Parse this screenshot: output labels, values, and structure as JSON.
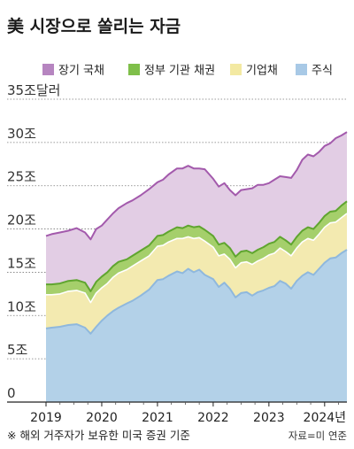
{
  "chart_data": {
    "type": "area",
    "title": "美 시장으로 쏠리는 자금",
    "unit_label": "35조달러",
    "y_ticks": [
      "35조달러",
      "30조",
      "25조",
      "20조",
      "15조",
      "10조",
      "5조",
      "0"
    ],
    "y_tick_values": [
      35,
      30,
      25,
      20,
      15,
      10,
      5,
      0
    ],
    "ylim": [
      0,
      35
    ],
    "x_ticks": [
      "2019",
      "2020",
      "2021",
      "2022",
      "2023",
      "2024년"
    ],
    "x_tick_values": [
      2019,
      2020,
      2021,
      2022,
      2023,
      2024
    ],
    "xlim": [
      2019,
      2024.4
    ],
    "stacked": true,
    "grid": "horizontal dotted",
    "legend_position": "top",
    "x": [
      2019.0,
      2019.1,
      2019.25,
      2019.4,
      2019.55,
      2019.7,
      2019.8,
      2019.9,
      2020.0,
      2020.1,
      2020.2,
      2020.3,
      2020.45,
      2020.55,
      2020.7,
      2020.85,
      2021.0,
      2021.1,
      2021.2,
      2021.35,
      2021.45,
      2021.55,
      2021.65,
      2021.75,
      2021.85,
      2022.0,
      2022.1,
      2022.2,
      2022.3,
      2022.4,
      2022.5,
      2022.6,
      2022.7,
      2022.8,
      2022.9,
      2023.0,
      2023.1,
      2023.2,
      2023.3,
      2023.4,
      2023.5,
      2023.6,
      2023.7,
      2023.8,
      2023.9,
      2024.0,
      2024.1,
      2024.2,
      2024.3,
      2024.4
    ],
    "series": [
      {
        "name": "주식",
        "color": "#b3d1e8",
        "values": [
          8.5,
          8.6,
          8.7,
          8.9,
          9.0,
          8.6,
          7.9,
          8.7,
          9.4,
          10.0,
          10.5,
          10.9,
          11.4,
          11.7,
          12.3,
          13.0,
          14.1,
          14.2,
          14.6,
          15.1,
          14.9,
          15.4,
          15.0,
          15.3,
          14.7,
          14.2,
          13.3,
          13.8,
          13.1,
          12.1,
          12.6,
          12.7,
          12.3,
          12.7,
          12.9,
          13.2,
          13.4,
          14.0,
          13.7,
          13.1,
          14.0,
          14.6,
          15.0,
          14.7,
          15.4,
          16.1,
          16.6,
          16.7,
          17.2,
          17.6
        ]
      },
      {
        "name": "기업채",
        "color": "#f3eab0",
        "values": [
          3.9,
          3.8,
          3.8,
          3.9,
          3.9,
          4.0,
          3.6,
          3.9,
          3.8,
          3.7,
          3.9,
          4.0,
          3.9,
          4.0,
          4.0,
          3.9,
          3.9,
          3.9,
          3.9,
          3.8,
          4.0,
          3.7,
          3.9,
          3.7,
          3.9,
          3.7,
          3.6,
          3.3,
          3.4,
          3.4,
          3.5,
          3.5,
          3.6,
          3.6,
          3.7,
          3.8,
          3.8,
          3.8,
          3.7,
          3.8,
          3.8,
          3.9,
          3.9,
          4.0,
          4.0,
          4.1,
          4.1,
          4.1,
          4.1,
          4.2
        ]
      },
      {
        "name": "정부 기관 채권",
        "color": "#a5cf6b",
        "values": [
          1.2,
          1.2,
          1.2,
          1.2,
          1.2,
          1.2,
          1.3,
          1.3,
          1.3,
          1.3,
          1.3,
          1.3,
          1.2,
          1.2,
          1.2,
          1.2,
          1.2,
          1.2,
          1.2,
          1.3,
          1.2,
          1.3,
          1.3,
          1.3,
          1.3,
          1.3,
          1.3,
          1.3,
          1.3,
          1.3,
          1.3,
          1.3,
          1.3,
          1.3,
          1.3,
          1.3,
          1.3,
          1.3,
          1.3,
          1.3,
          1.3,
          1.3,
          1.3,
          1.3,
          1.3,
          1.3,
          1.3,
          1.3,
          1.4,
          1.4
        ]
      },
      {
        "name": "장기 국채",
        "color": "#e2cde4",
        "values": [
          5.6,
          5.8,
          5.9,
          5.8,
          6.0,
          5.8,
          6.0,
          6.1,
          5.9,
          6.1,
          6.1,
          6.2,
          6.5,
          6.4,
          6.4,
          6.5,
          6.2,
          6.4,
          6.6,
          6.8,
          6.9,
          6.9,
          6.8,
          6.7,
          7.0,
          6.6,
          6.7,
          6.9,
          6.7,
          7.1,
          7.1,
          7.1,
          7.5,
          7.5,
          7.2,
          7.0,
          7.2,
          7.0,
          7.3,
          7.7,
          7.7,
          8.2,
          8.4,
          8.4,
          8.2,
          8.1,
          7.9,
          8.4,
          8.1,
          8.0
        ]
      }
    ]
  },
  "legend": [
    {
      "label": "장기 국채",
      "color": "#b685c0"
    },
    {
      "label": "정부 기관 채권",
      "color": "#7fbf4a"
    },
    {
      "label": "기업채",
      "color": "#f3e9a2"
    },
    {
      "label": "주식",
      "color": "#a8c9e6"
    }
  ],
  "line_colors": {
    "장기 국채": "#a35aac",
    "정부 기관 채권": "#5fa52f",
    "기업채": "#ffffff",
    "주식": "#8fb8dd"
  },
  "footnote": "※ 해외 거주자가 보유한 미국 증권 기준",
  "source": "자료=미 연준"
}
